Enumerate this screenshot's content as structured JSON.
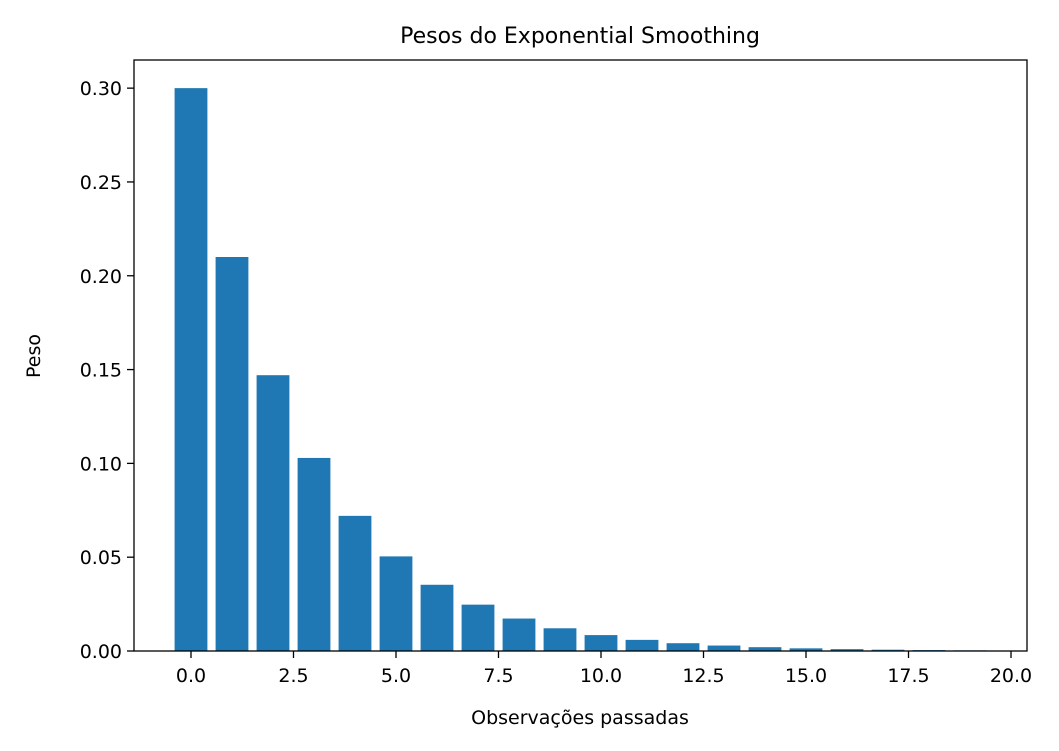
{
  "chart_data": {
    "type": "bar",
    "title": "Pesos do Exponential Smoothing",
    "xlabel": "Observações passadas",
    "ylabel": "Peso",
    "x": [
      0,
      1,
      2,
      3,
      4,
      5,
      6,
      7,
      8,
      9,
      10,
      11,
      12,
      13,
      14,
      15,
      16,
      17,
      18,
      19
    ],
    "values": [
      0.3,
      0.21,
      0.147,
      0.1029,
      0.07203,
      0.050421,
      0.035295,
      0.024706,
      0.017294,
      0.012106,
      0.008474,
      0.005932,
      0.004152,
      0.002907,
      0.002035,
      0.001424,
      0.000997,
      0.000698,
      0.000489,
      0.000342
    ],
    "bar_width": 0.8,
    "xlim": [
      -1.39,
      20.39
    ],
    "ylim": [
      0,
      0.315
    ],
    "xticks": [
      0,
      2.5,
      5,
      7.5,
      10,
      12.5,
      15,
      17.5,
      20
    ],
    "xtick_labels": [
      "0.0",
      "2.5",
      "5.0",
      "7.5",
      "10.0",
      "12.5",
      "15.0",
      "17.5",
      "20.0"
    ],
    "yticks": [
      0,
      0.05,
      0.1,
      0.15,
      0.2,
      0.25,
      0.3
    ],
    "ytick_labels": [
      "0.00",
      "0.05",
      "0.10",
      "0.15",
      "0.20",
      "0.25",
      "0.30"
    ],
    "grid": false,
    "bar_color": "#1f77b4"
  }
}
